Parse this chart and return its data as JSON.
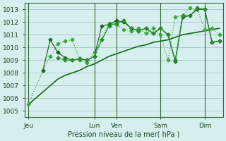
{
  "bg_color": "#d6eeee",
  "grid_color": "#aacccc",
  "line_color_dark": "#1a6b1a",
  "line_color_light": "#3aaa3a",
  "line_color_mid": "#2d8a2d",
  "xlabel": "Pression niveau de la mer( hPa )",
  "yticks": [
    1005,
    1006,
    1007,
    1008,
    1009,
    1010,
    1011,
    1012,
    1013
  ],
  "ylim": [
    1004.5,
    1013.5
  ],
  "xtick_labels": [
    "Jeu",
    "Lun",
    "Ven",
    "Sam",
    "Dim"
  ],
  "xtick_positions": [
    0,
    9,
    12,
    18,
    24
  ],
  "xlim": [
    -0.5,
    26.5
  ],
  "vlines": [
    0,
    9,
    12,
    18,
    24
  ],
  "series1_x": [
    0,
    1,
    2,
    3,
    4,
    5,
    6,
    7,
    8,
    9,
    10,
    11,
    12,
    13,
    14,
    15,
    16,
    17,
    18,
    19,
    20,
    21,
    22,
    23,
    24,
    25,
    26
  ],
  "series1_y": [
    1005.5,
    1006.0,
    1006.5,
    1007.0,
    1007.5,
    1007.8,
    1008.0,
    1008.2,
    1008.5,
    1008.7,
    1009.0,
    1009.3,
    1009.5,
    1009.7,
    1009.9,
    1010.1,
    1010.2,
    1010.4,
    1010.5,
    1010.6,
    1010.8,
    1011.0,
    1011.1,
    1011.2,
    1011.3,
    1011.4,
    1011.5
  ],
  "series2_x": [
    0,
    2,
    3,
    4,
    5,
    6,
    7,
    8,
    9,
    10,
    11,
    12,
    13,
    14,
    15,
    16,
    17,
    18,
    19,
    20,
    21,
    22,
    23,
    24,
    25,
    26
  ],
  "series2_y": [
    1005.5,
    1008.2,
    1009.3,
    1010.3,
    1010.5,
    1010.6,
    1009.0,
    1008.8,
    1009.6,
    1010.6,
    1011.9,
    1011.8,
    1011.4,
    1011.3,
    1011.5,
    1011.1,
    1011.5,
    1011.0,
    1009.0,
    1012.4,
    1012.5,
    1013.1,
    1013.0,
    1011.4,
    1011.5,
    1011.0
  ],
  "series3_x": [
    2,
    3,
    4,
    5,
    6,
    7,
    8,
    9,
    10,
    11,
    12,
    13,
    14,
    15,
    16,
    17,
    18,
    19,
    20,
    21,
    22,
    23,
    24,
    25,
    26
  ],
  "series3_y": [
    1008.2,
    1010.6,
    1009.6,
    1009.2,
    1009.0,
    1009.1,
    1009.0,
    1009.3,
    1011.7,
    1011.8,
    1012.1,
    1012.0,
    1011.5,
    1011.3,
    1011.5,
    1011.1,
    1011.5,
    1011.0,
    1008.9,
    1012.4,
    1012.5,
    1013.0,
    1013.0,
    1010.4,
    1010.5
  ],
  "series4_x": [
    4,
    5,
    6,
    7,
    8,
    9,
    10,
    11,
    12,
    13,
    14,
    15,
    16,
    17,
    18,
    19,
    20,
    21,
    22,
    23,
    24,
    25,
    26
  ],
  "series4_y": [
    1009.2,
    1009.0,
    1009.0,
    1009.1,
    1009.0,
    1009.3,
    1010.6,
    1011.7,
    1011.9,
    1012.1,
    1011.5,
    1011.3,
    1011.5,
    1011.1,
    1011.5,
    1011.0,
    1009.0,
    1012.5,
    1012.5,
    1013.1,
    1013.0,
    1010.4,
    1010.5
  ]
}
